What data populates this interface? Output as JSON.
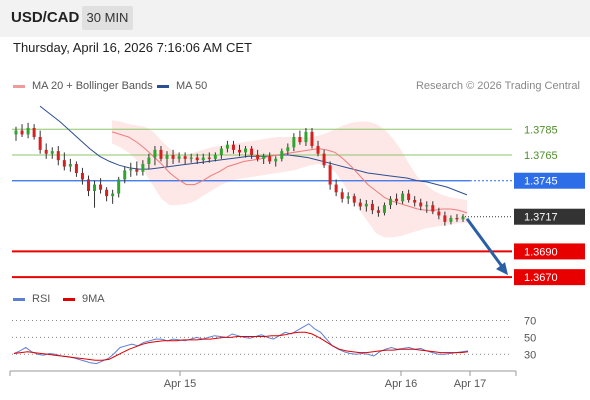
{
  "header": {
    "pair": "USD/CAD",
    "timeframe": "30 MIN"
  },
  "datetime": "Thursday, April 16, 2026 7:16:06 AM CET",
  "legend": {
    "ma20": "MA 20 + Bollinger Bands",
    "ma50": "MA 50",
    "credit": "Research © 2026 Trading Central"
  },
  "rsi_legend": {
    "rsi": "RSI",
    "ma9": "9MA"
  },
  "colors": {
    "ma20": "#ee7b7b",
    "ma50": "#2c4f91",
    "band": "#fde3e3",
    "up": "#2ea62e",
    "down": "#d62020",
    "resistance": "#8dc66b",
    "pivot": "#2e6de8",
    "support": "#e80000",
    "current": "#333333",
    "rsi": "#5b7fd6",
    "rsi_ma": "#e00000",
    "arrow": "#2a5fa6"
  },
  "chart_data": [
    {
      "type": "candlestick",
      "title": "USD/CAD",
      "y_range": [
        1.366,
        1.38
      ],
      "x_labels": [
        "Apr 15",
        "Apr 16",
        "Apr 17"
      ],
      "levels": [
        {
          "name": "resistance-2",
          "value": 1.3785,
          "label": "1.3785",
          "kind": "resistance"
        },
        {
          "name": "resistance-1",
          "value": 1.3765,
          "label": "1.3765",
          "kind": "resistance"
        },
        {
          "name": "pivot",
          "value": 1.3745,
          "label": "1.3745",
          "kind": "pivot"
        },
        {
          "name": "current-price",
          "value": 1.3717,
          "label": "1.3717",
          "kind": "current"
        },
        {
          "name": "support-1",
          "value": 1.369,
          "label": "1.3690",
          "kind": "support"
        },
        {
          "name": "support-2",
          "value": 1.367,
          "label": "1.3670",
          "kind": "support"
        }
      ],
      "candles": [
        [
          1.3781,
          1.3787,
          1.3776,
          1.3784
        ],
        [
          1.3784,
          1.3789,
          1.3779,
          1.3781
        ],
        [
          1.3781,
          1.379,
          1.3778,
          1.3786
        ],
        [
          1.3786,
          1.3789,
          1.3777,
          1.3779
        ],
        [
          1.3779,
          1.3784,
          1.3766,
          1.3769
        ],
        [
          1.3769,
          1.3774,
          1.3762,
          1.3766
        ],
        [
          1.3766,
          1.3771,
          1.3762,
          1.3768
        ],
        [
          1.3768,
          1.3772,
          1.3757,
          1.3761
        ],
        [
          1.3761,
          1.3767,
          1.3753,
          1.3756
        ],
        [
          1.3756,
          1.3762,
          1.3752,
          1.3758
        ],
        [
          1.3758,
          1.376,
          1.3748,
          1.3751
        ],
        [
          1.3751,
          1.3755,
          1.3742,
          1.3746
        ],
        [
          1.3746,
          1.3749,
          1.3733,
          1.3737
        ],
        [
          1.3737,
          1.3745,
          1.3724,
          1.3742
        ],
        [
          1.3742,
          1.3747,
          1.3735,
          1.3738
        ],
        [
          1.3738,
          1.374,
          1.3729,
          1.3733
        ],
        [
          1.3733,
          1.3738,
          1.3727,
          1.3735
        ],
        [
          1.3735,
          1.3748,
          1.3732,
          1.3746
        ],
        [
          1.3746,
          1.3756,
          1.3743,
          1.3753
        ],
        [
          1.3753,
          1.3759,
          1.3748,
          1.3754
        ],
        [
          1.3754,
          1.376,
          1.3749,
          1.3752
        ],
        [
          1.3752,
          1.3761,
          1.3749,
          1.3758
        ],
        [
          1.3758,
          1.3766,
          1.3754,
          1.3763
        ],
        [
          1.3763,
          1.3772,
          1.3757,
          1.3769
        ],
        [
          1.3769,
          1.3772,
          1.376,
          1.3762
        ],
        [
          1.3762,
          1.3768,
          1.3756,
          1.3765
        ],
        [
          1.3765,
          1.3769,
          1.3758,
          1.3762
        ],
        [
          1.3762,
          1.3767,
          1.3759,
          1.3764
        ],
        [
          1.3764,
          1.3767,
          1.3758,
          1.3762
        ],
        [
          1.3762,
          1.3766,
          1.3759,
          1.3763
        ],
        [
          1.3763,
          1.3766,
          1.3758,
          1.3761
        ],
        [
          1.3761,
          1.3766,
          1.3758,
          1.3763
        ],
        [
          1.3763,
          1.3767,
          1.3759,
          1.3762
        ],
        [
          1.3762,
          1.3767,
          1.376,
          1.3765
        ],
        [
          1.3765,
          1.3772,
          1.3762,
          1.377
        ],
        [
          1.377,
          1.3776,
          1.3767,
          1.3773
        ],
        [
          1.3773,
          1.3776,
          1.3766,
          1.3769
        ],
        [
          1.3769,
          1.3773,
          1.3764,
          1.3767
        ],
        [
          1.3767,
          1.3772,
          1.3763,
          1.377
        ],
        [
          1.377,
          1.3772,
          1.3762,
          1.3765
        ],
        [
          1.3765,
          1.3769,
          1.376,
          1.3762
        ],
        [
          1.3762,
          1.3766,
          1.3758,
          1.3764
        ],
        [
          1.3764,
          1.3767,
          1.3758,
          1.376
        ],
        [
          1.376,
          1.3764,
          1.3756,
          1.3762
        ],
        [
          1.3762,
          1.377,
          1.376,
          1.3768
        ],
        [
          1.3768,
          1.3774,
          1.3765,
          1.3771
        ],
        [
          1.3771,
          1.3782,
          1.3768,
          1.3779
        ],
        [
          1.3779,
          1.3784,
          1.3773,
          1.3775
        ],
        [
          1.3775,
          1.3786,
          1.3772,
          1.3783
        ],
        [
          1.3783,
          1.3786,
          1.377,
          1.3772
        ],
        [
          1.3772,
          1.3776,
          1.3764,
          1.3766
        ],
        [
          1.3766,
          1.3769,
          1.3755,
          1.3757
        ],
        [
          1.3757,
          1.376,
          1.3738,
          1.3742
        ],
        [
          1.3742,
          1.3746,
          1.3733,
          1.3736
        ],
        [
          1.3736,
          1.3739,
          1.3728,
          1.3731
        ],
        [
          1.3731,
          1.3736,
          1.3727,
          1.3733
        ],
        [
          1.3733,
          1.3735,
          1.3725,
          1.3728
        ],
        [
          1.3728,
          1.3731,
          1.3722,
          1.3725
        ],
        [
          1.3725,
          1.373,
          1.3721,
          1.3727
        ],
        [
          1.3727,
          1.373,
          1.3719,
          1.3722
        ],
        [
          1.3722,
          1.3725,
          1.3717,
          1.372
        ],
        [
          1.372,
          1.3728,
          1.3718,
          1.3726
        ],
        [
          1.3726,
          1.3733,
          1.3723,
          1.3731
        ],
        [
          1.3731,
          1.3735,
          1.3726,
          1.3729
        ],
        [
          1.3729,
          1.3737,
          1.3727,
          1.3735
        ],
        [
          1.3735,
          1.3738,
          1.3728,
          1.373
        ],
        [
          1.373,
          1.3733,
          1.3725,
          1.3728
        ],
        [
          1.3728,
          1.3731,
          1.3722,
          1.3725
        ],
        [
          1.3725,
          1.3729,
          1.372,
          1.3726
        ],
        [
          1.3726,
          1.3729,
          1.3719,
          1.3721
        ],
        [
          1.3721,
          1.3724,
          1.3715,
          1.3718
        ],
        [
          1.3718,
          1.3721,
          1.371,
          1.3713
        ],
        [
          1.3713,
          1.3718,
          1.3711,
          1.3716
        ],
        [
          1.3716,
          1.3719,
          1.3713,
          1.3715
        ],
        [
          1.3715,
          1.3719,
          1.3713,
          1.3717
        ]
      ],
      "ma20": [
        1.3783,
        1.3781,
        1.3779,
        1.3775,
        1.377,
        1.3764,
        1.3758,
        1.3751,
        1.3746,
        1.3742,
        1.3742,
        1.3745,
        1.3749,
        1.3752,
        1.3756,
        1.3758,
        1.376,
        1.3761,
        1.3762,
        1.3764,
        1.3765,
        1.3766,
        1.3767,
        1.3768,
        1.3769,
        1.377,
        1.3769,
        1.3767,
        1.3762,
        1.3756,
        1.3749,
        1.3742,
        1.3737,
        1.3732,
        1.3729,
        1.3727,
        1.3725,
        1.3723,
        1.3722,
        1.3722,
        1.3723,
        1.3723,
        1.3722,
        1.372
      ],
      "ma50": [
        1.3803,
        1.3797,
        1.3791,
        1.3784,
        1.3777,
        1.377,
        1.3764,
        1.376,
        1.3757,
        1.3755,
        1.3754,
        1.3754,
        1.3755,
        1.3756,
        1.3757,
        1.3758,
        1.3759,
        1.376,
        1.3761,
        1.3762,
        1.3763,
        1.3764,
        1.3764,
        1.3764,
        1.3765,
        1.3765,
        1.3764,
        1.3763,
        1.3761,
        1.3759,
        1.3757,
        1.3755,
        1.3753,
        1.3751,
        1.375,
        1.3749,
        1.3748,
        1.3747,
        1.3745,
        1.3744,
        1.3742,
        1.374,
        1.3737,
        1.3734
      ],
      "bb_upper": [
        1.3792,
        1.3791,
        1.3789,
        1.3788,
        1.3787,
        1.3783,
        1.3776,
        1.377,
        1.3766,
        1.3765,
        1.3767,
        1.3769,
        1.3771,
        1.3772,
        1.3773,
        1.3774,
        1.3775,
        1.3776,
        1.3777,
        1.3778,
        1.3779,
        1.3779,
        1.3779,
        1.3779,
        1.3779,
        1.378,
        1.3782,
        1.3785,
        1.3788,
        1.379,
        1.3791,
        1.3791,
        1.3789,
        1.3785,
        1.3778,
        1.3769,
        1.3758,
        1.3748,
        1.3742,
        1.3737,
        1.3734,
        1.3732,
        1.3731,
        1.373
      ],
      "bb_lower": [
        1.3774,
        1.3771,
        1.3767,
        1.3761,
        1.3751,
        1.3741,
        1.3731,
        1.3726,
        1.3726,
        1.3727,
        1.3729,
        1.3733,
        1.3737,
        1.3741,
        1.3744,
        1.3746,
        1.3747,
        1.3748,
        1.3749,
        1.375,
        1.3751,
        1.3752,
        1.3753,
        1.3755,
        1.3757,
        1.3758,
        1.3757,
        1.3752,
        1.3743,
        1.3732,
        1.3722,
        1.3713,
        1.3704,
        1.3701,
        1.3701,
        1.3702,
        1.3704,
        1.3706,
        1.3708,
        1.3709,
        1.371,
        1.3711,
        1.3712,
        1.3712
      ],
      "forecast": {
        "from": 1.3717,
        "to": 1.367
      }
    },
    {
      "type": "line",
      "title": "RSI",
      "y_range": [
        15,
        80
      ],
      "y_ticks": [
        "70",
        "50",
        "30"
      ],
      "series": [
        {
          "name": "RSI",
          "values": [
            31,
            34,
            38,
            33,
            30,
            29,
            31,
            30,
            28,
            27,
            26,
            24,
            22,
            20,
            19,
            22,
            25,
            31,
            38,
            40,
            42,
            40,
            44,
            46,
            48,
            48,
            46,
            48,
            47,
            46,
            48,
            50,
            48,
            50,
            52,
            51,
            50,
            54,
            52,
            50,
            49,
            51,
            53,
            50,
            48,
            52,
            56,
            54,
            58,
            62,
            66,
            60,
            56,
            48,
            40,
            36,
            33,
            31,
            30,
            31,
            30,
            28,
            33,
            36,
            38,
            36,
            37,
            38,
            36,
            37,
            34,
            32,
            30,
            30,
            31,
            32,
            33,
            34
          ]
        },
        {
          "name": "9MA",
          "values": [
            31,
            32,
            33,
            32,
            31,
            30,
            29,
            28,
            27,
            26,
            25,
            24,
            23,
            23,
            24,
            28,
            32,
            36,
            39,
            42,
            44,
            45,
            46,
            46,
            46,
            47,
            47,
            47,
            48,
            48,
            49,
            50,
            50,
            51,
            51,
            51,
            51,
            51,
            52,
            52,
            53,
            55,
            56,
            56,
            54,
            50,
            45,
            40,
            36,
            34,
            33,
            32,
            32,
            33,
            34,
            35,
            35,
            36,
            36,
            36,
            35,
            34,
            33,
            32,
            32,
            32,
            32,
            33
          ]
        }
      ]
    }
  ]
}
